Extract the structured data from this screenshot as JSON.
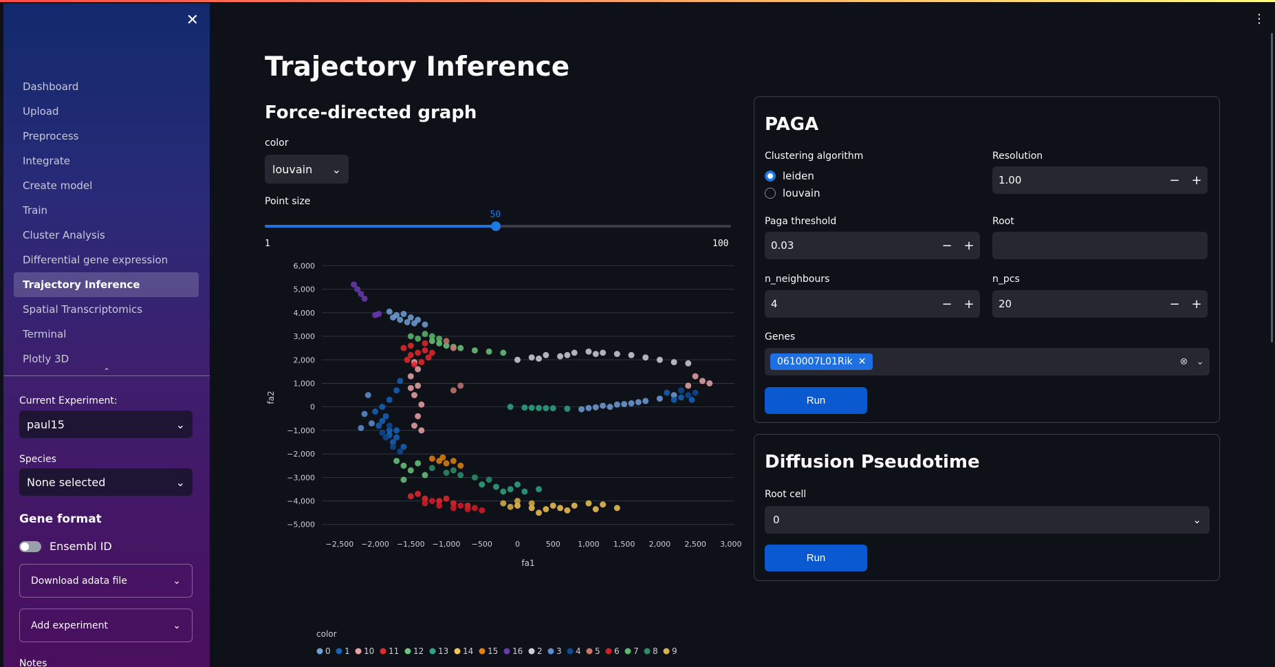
{
  "sidebar": {
    "close_icon": "✕",
    "nav": [
      "Dashboard",
      "Upload",
      "Preprocess",
      "Integrate",
      "Create model",
      "Train",
      "Cluster Analysis",
      "Differential gene expression",
      "Trajectory Inference",
      "Spatial Transcriptomics",
      "Terminal",
      "Plotly 3D"
    ],
    "active_index": 8,
    "current_experiment_label": "Current Experiment:",
    "current_experiment_value": "paul15",
    "species_label": "Species",
    "species_value": "None selected",
    "gene_format_heading": "Gene format",
    "ensembl_toggle_label": "Ensembl ID",
    "download_expander": "Download adata file",
    "add_experiment_expander": "Add experiment",
    "notes_label": "Notes"
  },
  "main": {
    "title": "Trajectory Inference",
    "fdg_heading": "Force-directed graph",
    "color_label": "color",
    "color_value": "louvain",
    "point_size_label": "Point size",
    "point_size": {
      "value": "50",
      "min": "1",
      "max": "100",
      "fraction": 0.495
    }
  },
  "paga": {
    "heading": "PAGA",
    "clustering_label": "Clustering algorithm",
    "clustering_options": [
      "leiden",
      "louvain"
    ],
    "clustering_selected": "leiden",
    "resolution_label": "Resolution",
    "resolution_value": "1.00",
    "threshold_label": "Paga threshold",
    "threshold_value": "0.03",
    "root_label": "Root",
    "root_value": "",
    "neighbours_label": "n_neighbours",
    "neighbours_value": "4",
    "pcs_label": "n_pcs",
    "pcs_value": "20",
    "genes_label": "Genes",
    "genes_selected": "0610007L01Rik",
    "run_label": "Run"
  },
  "diffusion": {
    "heading": "Diffusion Pseudotime",
    "root_cell_label": "Root cell",
    "root_cell_value": "0",
    "run_label": "Run"
  },
  "chart_data": {
    "type": "scatter",
    "xlabel": "fa1",
    "ylabel": "fa2",
    "xlim": [
      -2750,
      3050
    ],
    "ylim": [
      -5300,
      6100
    ],
    "xticks": [
      -2500,
      -2000,
      -1500,
      -1000,
      -500,
      0,
      500,
      1000,
      1500,
      2000,
      2500,
      3000
    ],
    "xtick_labels": [
      "−2,500",
      "−2,000",
      "−1,500",
      "−1,000",
      "−500",
      "0",
      "500",
      "1,000",
      "1,500",
      "2,000",
      "2,500",
      "3,000"
    ],
    "yticks": [
      -5000,
      -4000,
      -3000,
      -2000,
      -1000,
      0,
      1000,
      2000,
      3000,
      4000,
      5000,
      6000
    ],
    "ytick_labels": [
      "−5,000",
      "−4,000",
      "−3,000",
      "−2,000",
      "−1,000",
      "0",
      "1,000",
      "2,000",
      "3,000",
      "4,000",
      "5,000",
      "6,000"
    ],
    "legend_title": "color",
    "legend_position": "bottom",
    "series": [
      {
        "name": "0",
        "color": "#6f9fd6",
        "points": [
          [
            -1800,
            4050
          ],
          [
            -1700,
            3900
          ],
          [
            -1600,
            3950
          ],
          [
            -1500,
            3800
          ],
          [
            -1400,
            3700
          ],
          [
            -1650,
            3700
          ],
          [
            -1550,
            3600
          ],
          [
            -1300,
            3500
          ],
          [
            -1750,
            3800
          ],
          [
            -1450,
            3550
          ],
          [
            1000,
            -50
          ],
          [
            1200,
            50
          ],
          [
            1400,
            100
          ],
          [
            1600,
            150
          ],
          [
            1800,
            250
          ],
          [
            2000,
            350
          ],
          [
            1300,
            0
          ],
          [
            1700,
            200
          ],
          [
            2200,
            500
          ],
          [
            900,
            -100
          ],
          [
            1100,
            -20
          ],
          [
            1500,
            120
          ]
        ]
      },
      {
        "name": "1",
        "color": "#1663b8",
        "points": [
          [
            -2000,
            -200
          ],
          [
            -1900,
            -600
          ],
          [
            -1800,
            -1000
          ],
          [
            -1700,
            -1300
          ],
          [
            -1950,
            -800
          ],
          [
            -1850,
            -400
          ],
          [
            -1750,
            -1500
          ],
          [
            -1600,
            -1700
          ],
          [
            -1700,
            -1000
          ],
          [
            -1800,
            -1200
          ],
          [
            -1900,
            0
          ],
          [
            -1800,
            300
          ],
          [
            -1700,
            700
          ],
          [
            -1650,
            1100
          ],
          [
            2100,
            600
          ],
          [
            2300,
            400
          ],
          [
            2450,
            300
          ],
          [
            2200,
            300
          ]
        ]
      },
      {
        "name": "10",
        "color": "#e7a3a6",
        "points": [
          [
            -1500,
            1300
          ],
          [
            -1400,
            900
          ],
          [
            -1450,
            500
          ],
          [
            -1350,
            100
          ],
          [
            -1400,
            -400
          ],
          [
            -1450,
            -800
          ],
          [
            -1350,
            -1000
          ],
          [
            -1500,
            800
          ],
          [
            -1400,
            1600
          ],
          [
            -1450,
            1900
          ],
          [
            2500,
            1300
          ],
          [
            2600,
            1100
          ],
          [
            2700,
            1000
          ],
          [
            2400,
            900
          ]
        ]
      },
      {
        "name": "11",
        "color": "#e3292d",
        "points": [
          [
            -1600,
            2500
          ],
          [
            -1500,
            2200
          ],
          [
            -1400,
            2300
          ],
          [
            -1300,
            2400
          ],
          [
            -1500,
            2600
          ],
          [
            -1350,
            1900
          ],
          [
            -1250,
            2100
          ],
          [
            -1450,
            1800
          ],
          [
            -1550,
            2000
          ],
          [
            -1200,
            2300
          ],
          [
            -1300,
            2700
          ],
          [
            -1500,
            -3800
          ],
          [
            -1300,
            -3900
          ],
          [
            -1100,
            -4000
          ],
          [
            -900,
            -4100
          ],
          [
            -700,
            -4200
          ],
          [
            -1400,
            -3700
          ],
          [
            -1000,
            -3900
          ]
        ]
      },
      {
        "name": "12",
        "color": "#6cc47e",
        "points": [
          [
            -1200,
            2800
          ],
          [
            -1000,
            2600
          ],
          [
            -800,
            2500
          ],
          [
            -600,
            2400
          ],
          [
            -400,
            2350
          ],
          [
            -200,
            2300
          ],
          [
            -1100,
            2700
          ],
          [
            -900,
            2550
          ],
          [
            -1700,
            -2300
          ],
          [
            -1600,
            -2500
          ],
          [
            -1500,
            -2700
          ],
          [
            -1300,
            -2900
          ],
          [
            -1600,
            -3100
          ],
          [
            -1400,
            -2400
          ]
        ]
      },
      {
        "name": "13",
        "color": "#2fa584",
        "points": [
          [
            -100,
            0
          ],
          [
            100,
            -30
          ],
          [
            300,
            -50
          ],
          [
            500,
            -60
          ],
          [
            700,
            -80
          ],
          [
            200,
            -40
          ],
          [
            400,
            -55
          ],
          [
            -500,
            -3300
          ],
          [
            -300,
            -3400
          ],
          [
            -100,
            -3500
          ],
          [
            100,
            -3600
          ],
          [
            300,
            -3500
          ],
          [
            -200,
            -3600
          ],
          [
            0,
            -3300
          ]
        ]
      },
      {
        "name": "14",
        "color": "#f2c356",
        "points": [
          [
            0,
            -4200
          ],
          [
            200,
            -4300
          ],
          [
            400,
            -4350
          ],
          [
            600,
            -4300
          ],
          [
            800,
            -4200
          ],
          [
            1000,
            -4100
          ],
          [
            1200,
            -4150
          ],
          [
            1400,
            -4300
          ],
          [
            300,
            -4500
          ],
          [
            700,
            -4400
          ],
          [
            1100,
            -4350
          ],
          [
            500,
            -4200
          ]
        ]
      },
      {
        "name": "15",
        "color": "#e0820f",
        "points": [
          [
            -1200,
            -2200
          ],
          [
            -1100,
            -2300
          ],
          [
            -1000,
            -2400
          ],
          [
            -900,
            -2300
          ],
          [
            -800,
            -2500
          ],
          [
            -1050,
            -2150
          ]
        ]
      },
      {
        "name": "16",
        "color": "#6a3bb0",
        "points": [
          [
            -2300,
            5200
          ],
          [
            -2250,
            5000
          ],
          [
            -2200,
            4800
          ],
          [
            -2150,
            4600
          ],
          [
            -2000,
            3900
          ],
          [
            -1950,
            3950
          ]
        ]
      },
      {
        "name": "2",
        "color": "#cfcfd6",
        "points": [
          [
            0,
            2000
          ],
          [
            200,
            2100
          ],
          [
            400,
            2200
          ],
          [
            600,
            2150
          ],
          [
            800,
            2300
          ],
          [
            1000,
            2350
          ],
          [
            1200,
            2300
          ],
          [
            1400,
            2250
          ],
          [
            1600,
            2200
          ],
          [
            1800,
            2100
          ],
          [
            2000,
            2000
          ],
          [
            2200,
            1900
          ],
          [
            2400,
            1850
          ],
          [
            300,
            2050
          ],
          [
            700,
            2200
          ],
          [
            1100,
            2250
          ]
        ]
      },
      {
        "name": "3",
        "color": "#5b8fd0",
        "points": [
          [
            -2100,
            500
          ],
          [
            -2200,
            -900
          ],
          [
            -2050,
            -700
          ],
          [
            -2150,
            -300
          ]
        ]
      },
      {
        "name": "4",
        "color": "#0d4a96",
        "points": [
          [
            -1850,
            -1300
          ],
          [
            -1750,
            -1700
          ],
          [
            -1650,
            -1900
          ],
          [
            -1800,
            -800
          ],
          [
            -1900,
            -1100
          ],
          [
            2300,
            700
          ],
          [
            2400,
            500
          ],
          [
            2500,
            600
          ]
        ]
      },
      {
        "name": "5",
        "color": "#c7766c",
        "points": [
          [
            -900,
            700
          ],
          [
            -800,
            900
          ],
          [
            -1000,
            2800
          ],
          [
            -900,
            2500
          ]
        ]
      },
      {
        "name": "6",
        "color": "#d41d28",
        "points": [
          [
            -1300,
            -4100
          ],
          [
            -1100,
            -4200
          ],
          [
            -900,
            -4300
          ],
          [
            -700,
            -4350
          ],
          [
            -500,
            -4400
          ],
          [
            -1200,
            -4000
          ],
          [
            -800,
            -4200
          ],
          [
            -600,
            -4300
          ]
        ]
      },
      {
        "name": "7",
        "color": "#58b96a",
        "points": [
          [
            -1500,
            3000
          ],
          [
            -1300,
            3100
          ],
          [
            -1100,
            2900
          ],
          [
            -1400,
            2900
          ],
          [
            -1200,
            3000
          ]
        ]
      },
      {
        "name": "8",
        "color": "#2b8f6b",
        "points": [
          [
            -1200,
            -2600
          ],
          [
            -1000,
            -2800
          ],
          [
            -800,
            -2900
          ],
          [
            -600,
            -3000
          ],
          [
            -400,
            -3100
          ],
          [
            -900,
            -2700
          ]
        ]
      },
      {
        "name": "9",
        "color": "#d9b04a",
        "points": [
          [
            -200,
            -4100
          ],
          [
            0,
            -4000
          ],
          [
            200,
            -4100
          ],
          [
            -100,
            -4250
          ]
        ]
      }
    ]
  }
}
